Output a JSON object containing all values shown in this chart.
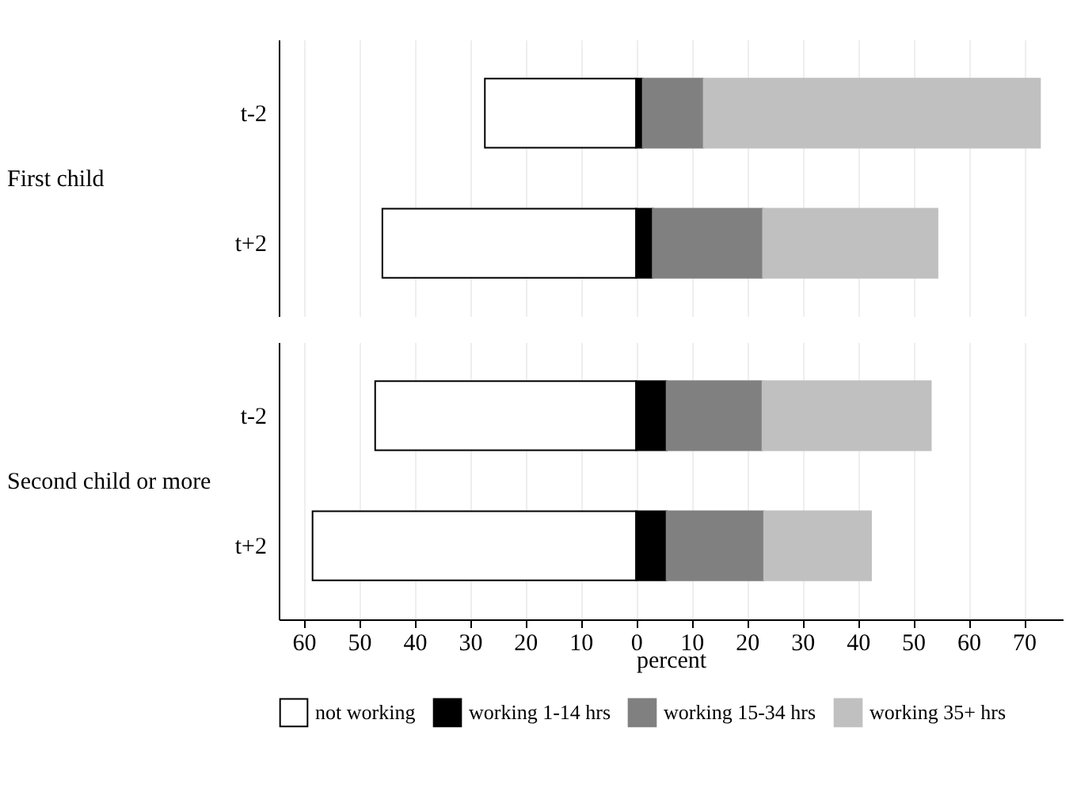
{
  "chart_data": [
    {
      "type": "bar",
      "orientation": "horizontal",
      "stacked": true,
      "ylabel": "First child",
      "categories": [
        "t-2",
        "t+2"
      ],
      "series": [
        {
          "color": "#ffffff",
          "values": [
            -27.3,
            -45.8
          ]
        },
        {
          "color": "#000000",
          "values": [
            1.2,
            3.0
          ]
        },
        {
          "color": "#808080",
          "values": [
            11.0,
            19.9
          ]
        },
        {
          "color": "#c0c0c0",
          "values": [
            60.7,
            31.5
          ]
        }
      ],
      "xlim": [
        -64.5,
        77
      ],
      "xticks": [
        -60,
        -50,
        -40,
        -30,
        -20,
        -10,
        0,
        10,
        20,
        30,
        40,
        50,
        60,
        70
      ],
      "grid": "x",
      "legend": false,
      "tick_labels": "y"
    },
    {
      "type": "bar",
      "orientation": "horizontal",
      "stacked": true,
      "ylabel": "Second child or more",
      "xlabel": "percent",
      "categories": [
        "t-2",
        "t+2"
      ],
      "series": [
        {
          "name": "not working",
          "color": "#ffffff",
          "values": [
            -47.1,
            -58.4
          ]
        },
        {
          "name": "working 1-14 hrs",
          "color": "#000000",
          "values": [
            5.5,
            5.5
          ]
        },
        {
          "name": "working 15-34 hrs",
          "color": "#808080",
          "values": [
            17.3,
            17.6
          ]
        },
        {
          "name": "working 35+ hrs",
          "color": "#c0c0c0",
          "values": [
            30.4,
            19.3
          ]
        }
      ],
      "xlim": [
        -64.5,
        77
      ],
      "xticks": [
        {
          "value": -60,
          "label": "60"
        },
        {
          "value": -50,
          "label": "50"
        },
        {
          "value": -40,
          "label": "40"
        },
        {
          "value": -30,
          "label": "30"
        },
        {
          "value": -20,
          "label": "20"
        },
        {
          "value": -10,
          "label": "10"
        },
        0,
        10,
        20,
        30,
        40,
        50,
        60,
        70
      ],
      "grid": "x",
      "legend": "bottom"
    }
  ]
}
